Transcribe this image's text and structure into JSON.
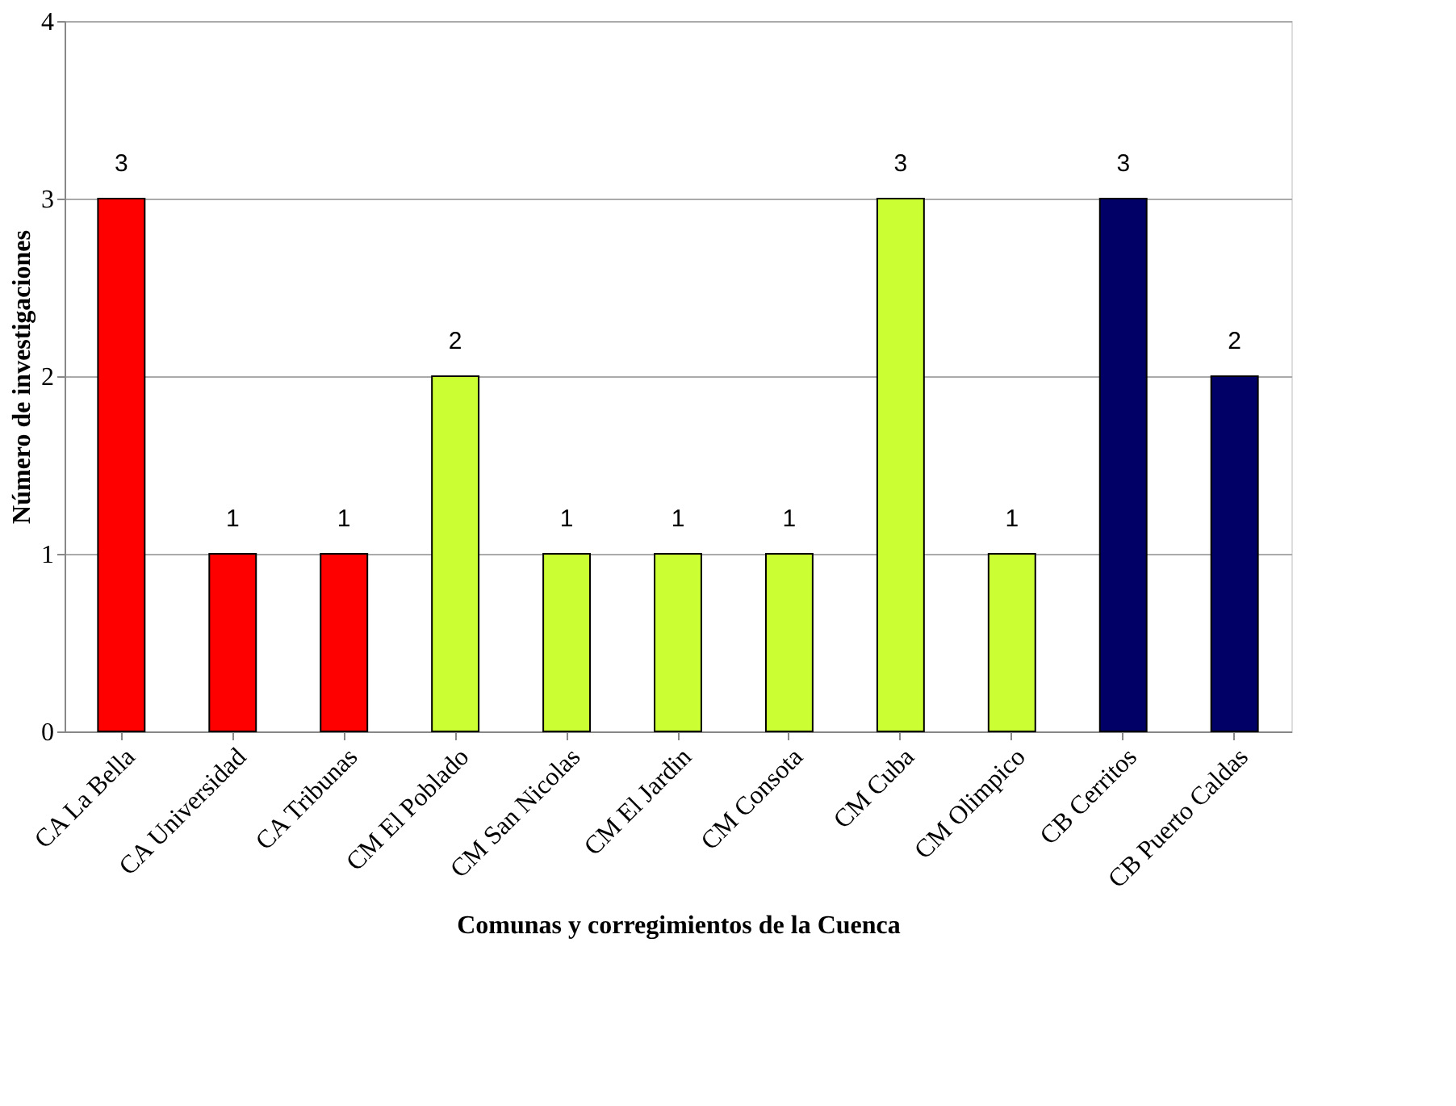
{
  "chart_data": {
    "type": "bar",
    "xlabel": "Comunas y corregimientos de la Cuenca",
    "ylabel": "Número de investigaciones",
    "categories": [
      "CA La Bella",
      "CA Universidad",
      "CA Tribunas",
      "CM El Poblado",
      "CM  San Nicolas",
      "CM El Jardin",
      "CM Consota",
      "CM Cuba",
      "CM Olimpico",
      "CB Cerritos",
      "CB Puerto Caldas"
    ],
    "values": [
      3,
      1,
      1,
      2,
      1,
      1,
      1,
      3,
      1,
      3,
      2
    ],
    "colors": [
      "#ff0000",
      "#ff0000",
      "#ff0000",
      "#ccff33",
      "#ccff33",
      "#ccff33",
      "#ccff33",
      "#ccff33",
      "#ccff33",
      "#000066",
      "#000066"
    ],
    "ylim": [
      0,
      4
    ],
    "yticks": [
      0,
      1,
      2,
      3,
      4
    ],
    "grid": "y",
    "data_labels": true
  }
}
